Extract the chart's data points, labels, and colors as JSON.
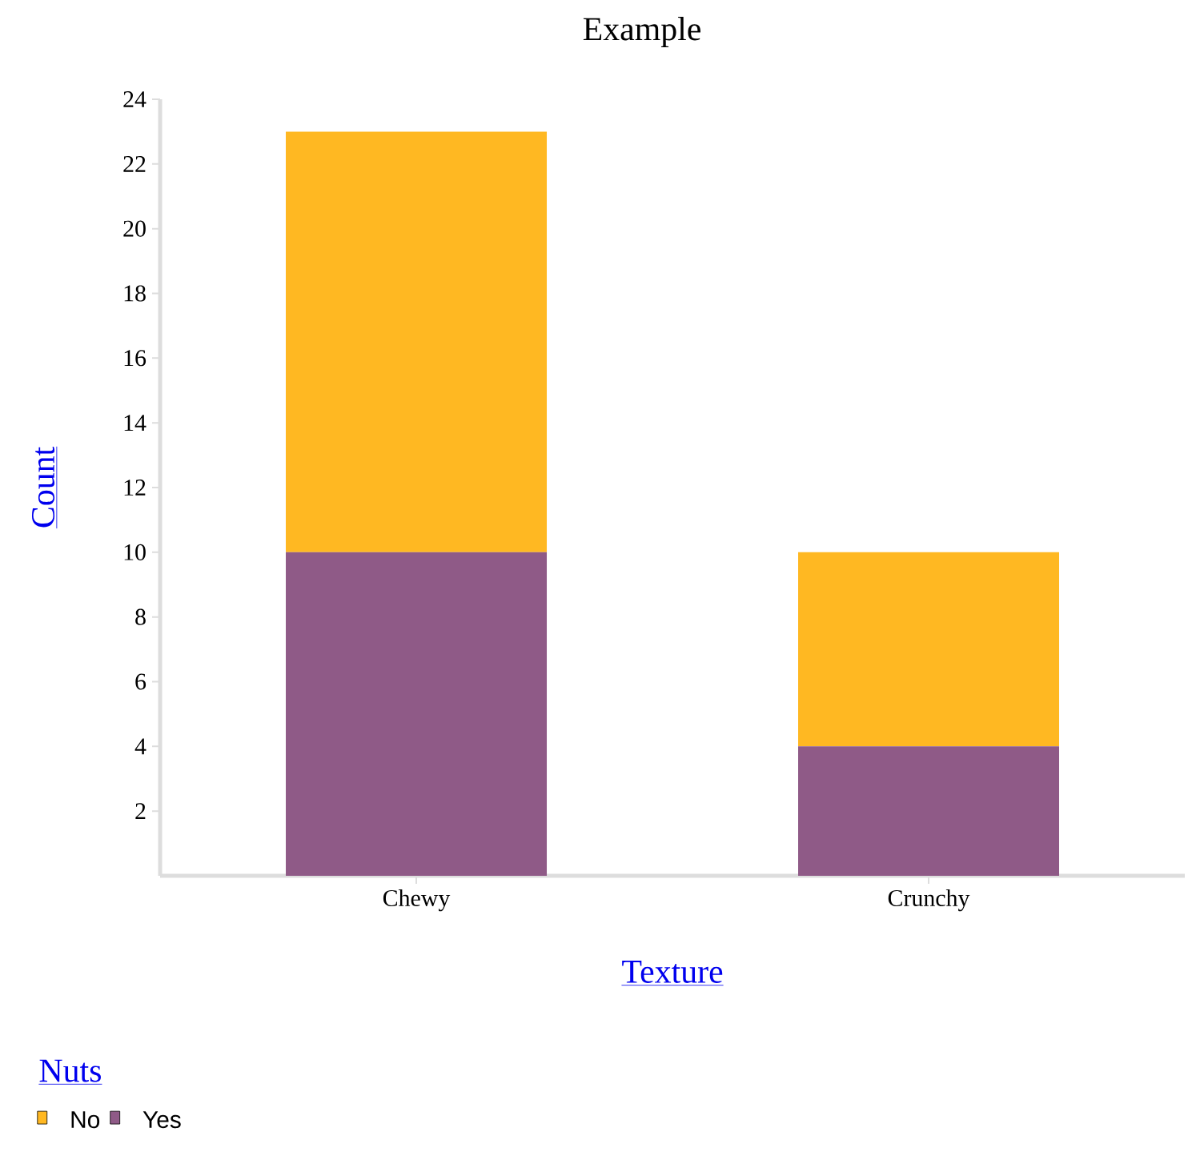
{
  "chart_data": {
    "type": "bar",
    "title": "Example",
    "xlabel": "Texture",
    "ylabel": "Count",
    "legend_title": "Nuts",
    "categories": [
      "Chewy",
      "Crunchy"
    ],
    "series": [
      {
        "name": "Yes",
        "color": "#8f5a87",
        "values": [
          10,
          4
        ]
      },
      {
        "name": "No",
        "color": "#ffb822",
        "values": [
          13,
          6
        ]
      }
    ],
    "stacked": true,
    "ylim": [
      0,
      24
    ],
    "yticks": [
      2,
      4,
      6,
      8,
      10,
      12,
      14,
      16,
      18,
      20,
      22,
      24
    ],
    "grid": false,
    "legend": "bottom"
  }
}
